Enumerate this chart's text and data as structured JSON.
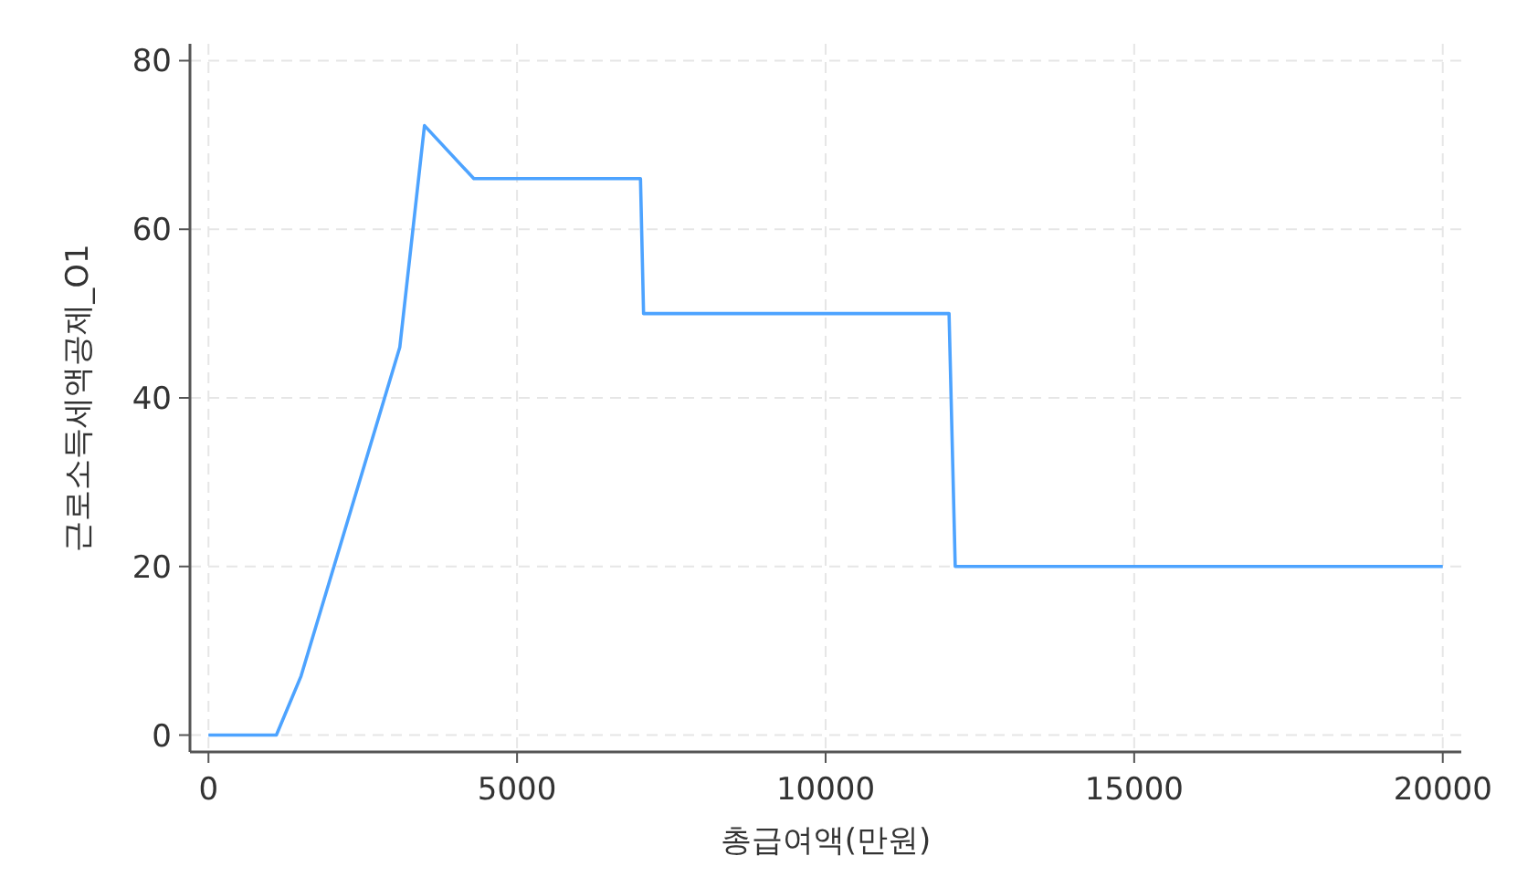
{
  "chart_data": {
    "type": "line",
    "xlabel": "총급여액(만원)",
    "ylabel": "근로소득세액공제_O1",
    "x": [
      0,
      1100,
      1500,
      3100,
      3500,
      4300,
      7000,
      7050,
      12000,
      12100,
      20000
    ],
    "series": [
      {
        "color": "#4da3ff",
        "values": [
          0,
          0,
          7,
          46,
          72.3,
          66,
          66,
          50,
          50,
          20,
          20
        ]
      }
    ],
    "xlim": [
      -300,
      20300
    ],
    "ylim": [
      -2,
      82
    ],
    "xticks": [
      0,
      5000,
      10000,
      15000,
      20000
    ],
    "yticks": [
      0,
      20,
      40,
      60,
      80
    ],
    "grid": true,
    "marker": "none",
    "line_style": "solid"
  }
}
